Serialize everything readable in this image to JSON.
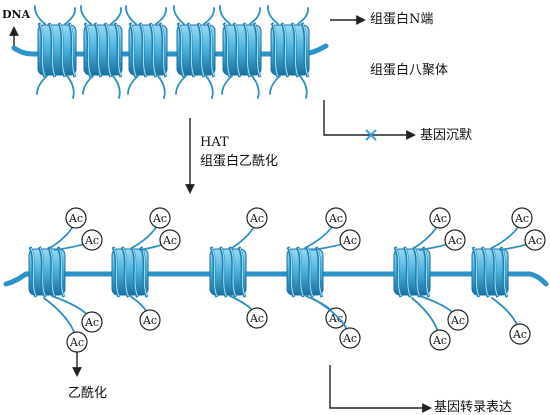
{
  "labels": {
    "dna": "DNA",
    "n_terminal": "组蛋白N端",
    "octamer": "组蛋白八聚体",
    "silencing": "基因沉默",
    "hat": "HAT",
    "acetylation_process": "组蛋白乙酰化",
    "acetylation": "乙酰化",
    "expression": "基因转录表达"
  },
  "acetyl_tag": "Ac",
  "colors": {
    "dna": "#3aa6d6",
    "dna_dark": "#1c6f9e",
    "histone_body": "#5bbfe6",
    "histone_stripe": "#1d7fb0",
    "tail": "#2d8fc1",
    "arrow": "#222222",
    "block_mark": "#3a9bdc"
  }
}
